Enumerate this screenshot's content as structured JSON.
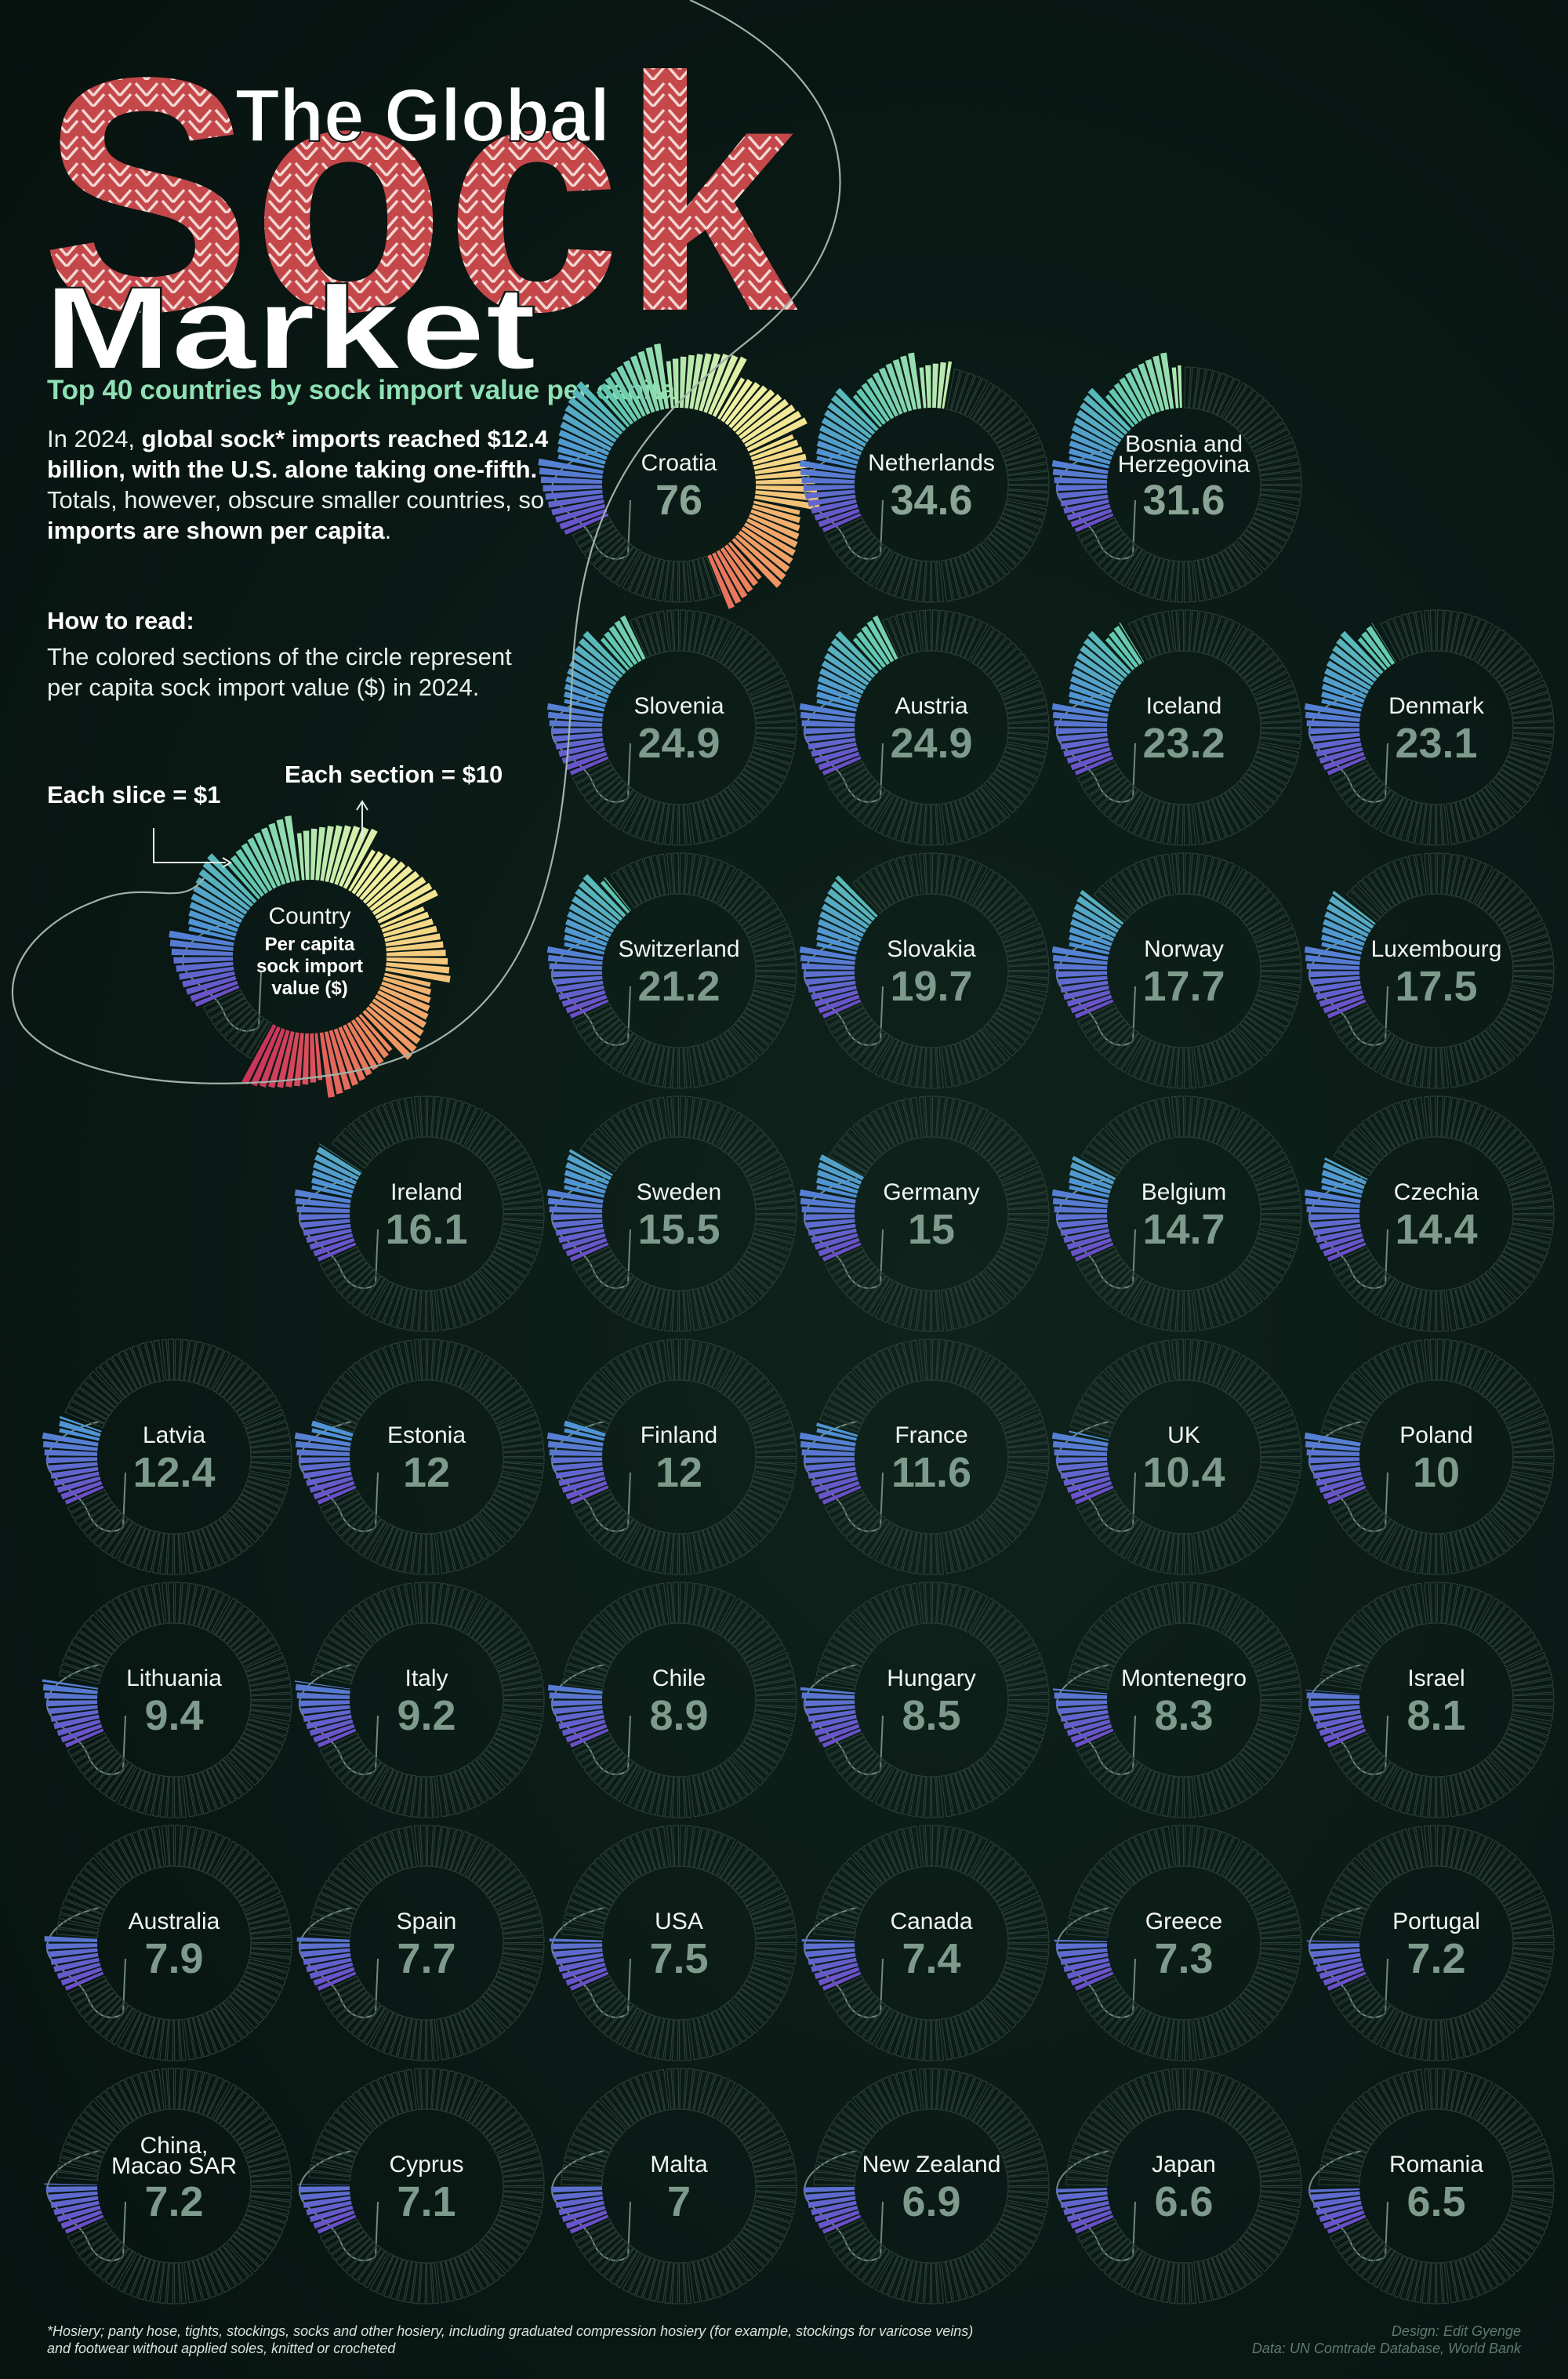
{
  "header": {
    "title_line1": "The Global",
    "title_big": "Sock",
    "title_line3": "Market",
    "subtitle": "Top 40 countries by sock import value per capita"
  },
  "intro": {
    "part1": "In 2024, ",
    "bold1": "global sock* imports reached $12.4 billion, with the U.S. alone taking one-fifth.",
    "part2": " Totals, however, obscure smaller countries, so ",
    "bold2": "imports are shown per capita",
    "part3": "."
  },
  "howto": {
    "heading": "How to read:",
    "body": "The colored sections of the circle represent per capita sock import value ($) in 2024.",
    "slice_label": "Each slice = $1",
    "section_label": "Each section = $10",
    "legend_country": "Country",
    "legend_line1": "Per capita",
    "legend_line2": "sock import",
    "legend_line3": "value ($)"
  },
  "colors": {
    "background": "#0a1915",
    "sock_pattern": "#c4474a",
    "subtitle": "#8fe0b4",
    "empty_slice": "#2a3f37",
    "value_text": "#7e9a8c",
    "ramp": [
      "#6b4fc8",
      "#4f8fd6",
      "#5cc4b0",
      "#a8e6b0",
      "#eef3a6",
      "#f6e08c",
      "#f4b872",
      "#ee8a5e",
      "#e0555c",
      "#c22a5a"
    ]
  },
  "chart_data": {
    "type": "radial-bar",
    "unit": "$ per capita, 2024",
    "max_value": 100,
    "slice_value": 1,
    "section_value": 10,
    "countries": [
      {
        "name": "Croatia",
        "value": 76
      },
      {
        "name": "Netherlands",
        "value": 34.6
      },
      {
        "name": "Bosnia and Herzegovina",
        "value": 31.6
      },
      {
        "name": "Slovenia",
        "value": 24.9
      },
      {
        "name": "Austria",
        "value": 24.9
      },
      {
        "name": "Iceland",
        "value": 23.2
      },
      {
        "name": "Denmark",
        "value": 23.1
      },
      {
        "name": "Switzerland",
        "value": 21.2
      },
      {
        "name": "Slovakia",
        "value": 19.7
      },
      {
        "name": "Norway",
        "value": 17.7
      },
      {
        "name": "Luxembourg",
        "value": 17.5
      },
      {
        "name": "Ireland",
        "value": 16.1
      },
      {
        "name": "Sweden",
        "value": 15.5
      },
      {
        "name": "Germany",
        "value": 15
      },
      {
        "name": "Belgium",
        "value": 14.7
      },
      {
        "name": "Czechia",
        "value": 14.4
      },
      {
        "name": "Latvia",
        "value": 12.4
      },
      {
        "name": "Estonia",
        "value": 12
      },
      {
        "name": "Finland",
        "value": 12
      },
      {
        "name": "France",
        "value": 11.6
      },
      {
        "name": "UK",
        "value": 10.4
      },
      {
        "name": "Poland",
        "value": 10
      },
      {
        "name": "Lithuania",
        "value": 9.4
      },
      {
        "name": "Italy",
        "value": 9.2
      },
      {
        "name": "Chile",
        "value": 8.9
      },
      {
        "name": "Hungary",
        "value": 8.5
      },
      {
        "name": "Montenegro",
        "value": 8.3
      },
      {
        "name": "Israel",
        "value": 8.1
      },
      {
        "name": "Australia",
        "value": 7.9
      },
      {
        "name": "Spain",
        "value": 7.7
      },
      {
        "name": "USA",
        "value": 7.5
      },
      {
        "name": "Canada",
        "value": 7.4
      },
      {
        "name": "Greece",
        "value": 7.3
      },
      {
        "name": "Portugal",
        "value": 7.2
      },
      {
        "name": "China, Macao SAR",
        "value": 7.2
      },
      {
        "name": "Cyprus",
        "value": 7.1
      },
      {
        "name": "Malta",
        "value": 7
      },
      {
        "name": "New Zealand",
        "value": 6.9
      },
      {
        "name": "Japan",
        "value": 6.6
      },
      {
        "name": "Romania",
        "value": 6.5
      }
    ]
  },
  "footer": {
    "footnote": "*Hosiery; panty hose, tights, stockings, socks and other hosiery, including graduated compression hosiery (for example, stockings for varicose veins) and footwear without applied soles, knitted or crocheted",
    "design": "Design: Edit Gyenge",
    "source": "Data: UN Comtrade Database, World Bank"
  }
}
